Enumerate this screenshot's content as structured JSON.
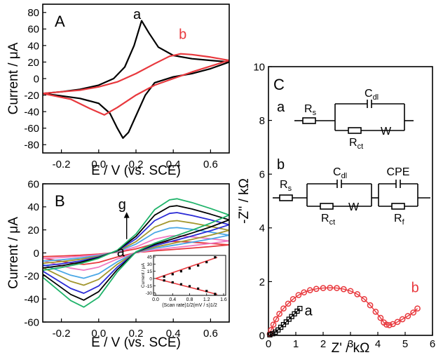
{
  "colors": {
    "a": "#000000",
    "b": "#e8383d",
    "frame": "#000000",
    "fit": "#e8383d"
  },
  "chart_data": [
    {
      "id": "A",
      "type": "line",
      "panel_label": "A",
      "xlabel": "E / V (vs. SCE)",
      "ylabel": "Current / μA",
      "xlim": [
        -0.3,
        0.7
      ],
      "ylim": [
        -90,
        90
      ],
      "xticks": [
        -0.2,
        0.0,
        0.2,
        0.4,
        0.6
      ],
      "xtick_labels": [
        "-0.2",
        "0.0",
        "0.2",
        "0.4",
        "0.6"
      ],
      "yticks": [
        -80,
        -60,
        -40,
        -20,
        0,
        20,
        40,
        60,
        80
      ],
      "ytick_labels": [
        "-80",
        "-60",
        "-40",
        "-20",
        "0",
        "20",
        "40",
        "60",
        "80"
      ],
      "series": [
        {
          "name": "a",
          "color": "#000000",
          "x": [
            -0.3,
            -0.2,
            -0.1,
            0.0,
            0.08,
            0.14,
            0.19,
            0.23,
            0.27,
            0.32,
            0.4,
            0.5,
            0.6,
            0.7,
            0.6,
            0.5,
            0.4,
            0.3,
            0.25,
            0.2,
            0.16,
            0.13,
            0.1,
            0.06,
            0.0,
            -0.1,
            -0.2,
            -0.3
          ],
          "y": [
            -18,
            -16,
            -13,
            -8,
            0,
            14,
            40,
            70,
            55,
            38,
            28,
            24,
            22,
            20,
            12,
            6,
            2,
            -5,
            -20,
            -45,
            -65,
            -72,
            -60,
            -42,
            -30,
            -24,
            -21,
            -18
          ]
        },
        {
          "name": "b",
          "color": "#e8383d",
          "x": [
            -0.3,
            -0.2,
            -0.1,
            0.0,
            0.1,
            0.2,
            0.3,
            0.38,
            0.44,
            0.5,
            0.6,
            0.7,
            0.6,
            0.5,
            0.4,
            0.3,
            0.2,
            0.1,
            0.03,
            -0.05,
            -0.15,
            -0.3
          ],
          "y": [
            -18,
            -16,
            -14,
            -10,
            -4,
            6,
            18,
            27,
            30,
            29,
            26,
            22,
            15,
            8,
            0,
            -8,
            -20,
            -35,
            -44,
            -36,
            -25,
            -18
          ]
        }
      ],
      "annotations": [
        {
          "text": "a",
          "x": 0.185,
          "y": 72
        },
        {
          "text": "b",
          "x": 0.43,
          "y": 48
        }
      ]
    },
    {
      "id": "B",
      "type": "line",
      "panel_label": "B",
      "xlabel": "E / V (vs. SCE)",
      "ylabel": "Current / μA",
      "xlim": [
        -0.3,
        0.7
      ],
      "ylim": [
        -60,
        60
      ],
      "xticks": [
        -0.2,
        0.0,
        0.2,
        0.4,
        0.6
      ],
      "xtick_labels": [
        "-0.2",
        "0.0",
        "0.2",
        "0.4",
        "0.6"
      ],
      "yticks": [
        -60,
        -40,
        -20,
        0,
        20,
        40,
        60
      ],
      "ytick_labels": [
        "-60",
        "-40",
        "-20",
        "0",
        "20",
        "40",
        "60"
      ],
      "series": [
        {
          "name": "a",
          "color": "#e8383d",
          "peak": 10
        },
        {
          "name": "",
          "color": "#f07ac2",
          "peak": 15
        },
        {
          "name": "",
          "color": "#4aa7e6",
          "peak": 22
        },
        {
          "name": "",
          "color": "#a2962e",
          "peak": 28
        },
        {
          "name": "",
          "color": "#2b2bd6",
          "peak": 35
        },
        {
          "name": "",
          "color": "#000000",
          "peak": 41
        },
        {
          "name": "g",
          "color": "#1fb36a",
          "peak": 47
        }
      ],
      "annotations": [
        {
          "text": "g",
          "x": 0.15,
          "y": 38
        },
        {
          "text": "a",
          "x": 0.14,
          "y": 2
        }
      ],
      "inset": {
        "type": "scatter",
        "xlabel": "(Scan rate)1/2(mV / s)1/2",
        "ylabel": "Current / μA",
        "xlim": [
          -0.05,
          1.65
        ],
        "ylim": [
          -35,
          48
        ],
        "xticks": [
          0.0,
          0.4,
          0.8,
          1.2,
          1.6
        ],
        "xtick_labels": [
          "0.0",
          "0.4",
          "0.8",
          "1.2",
          "1.6"
        ],
        "yticks": [
          -30,
          -15,
          0,
          15,
          30,
          45
        ],
        "ytick_labels": [
          "-30",
          "-15",
          "0",
          "15",
          "30",
          "45"
        ],
        "anodic": {
          "x": [
            0.2,
            0.4,
            0.6,
            0.8,
            1.0,
            1.2,
            1.4
          ],
          "y": [
            4,
            9,
            15,
            21,
            27,
            34,
            44
          ]
        },
        "cathodic": {
          "x": [
            0.2,
            0.4,
            0.6,
            0.8,
            1.0,
            1.2,
            1.4
          ],
          "y": [
            -4,
            -8,
            -12,
            -16,
            -21,
            -26,
            -32
          ]
        },
        "fit_anodic": [
          [
            0.0,
            0
          ],
          [
            1.45,
            44
          ]
        ],
        "fit_cathodic": [
          [
            0.0,
            0
          ],
          [
            1.45,
            -33
          ]
        ]
      }
    },
    {
      "id": "C",
      "type": "scatter",
      "panel_label": "C",
      "xlabel": "Z' / kΩ",
      "ylabel": "-Z'' / kΩ",
      "xlim": [
        0,
        6
      ],
      "ylim": [
        0,
        10
      ],
      "xticks": [
        0,
        1,
        2,
        3,
        4,
        5,
        6
      ],
      "xtick_labels": [
        "0",
        "1",
        "2",
        "3",
        "4",
        "5",
        "6"
      ],
      "yticks": [
        0,
        2,
        4,
        6,
        8,
        10
      ],
      "ytick_labels": [
        "0",
        "2",
        "4",
        "6",
        "8",
        "10"
      ],
      "series": [
        {
          "name": "a",
          "color": "#000000",
          "marker": "square",
          "x": [
            0.05,
            0.15,
            0.25,
            0.35,
            0.45,
            0.55,
            0.65,
            0.75,
            0.85,
            0.95,
            1.05,
            1.15
          ],
          "y": [
            0.02,
            0.06,
            0.12,
            0.2,
            0.3,
            0.4,
            0.5,
            0.6,
            0.7,
            0.8,
            0.9,
            1.0
          ]
        },
        {
          "name": "b",
          "color": "#e8383d",
          "marker": "circle",
          "x": [
            0.05,
            0.1,
            0.18,
            0.28,
            0.4,
            0.55,
            0.72,
            0.9,
            1.1,
            1.3,
            1.52,
            1.75,
            2.0,
            2.25,
            2.5,
            2.75,
            3.0,
            3.25,
            3.5,
            3.72,
            3.92,
            4.1,
            4.22,
            4.32,
            4.42,
            4.55,
            4.72,
            4.9,
            5.1,
            5.3,
            5.45
          ],
          "y": [
            0.05,
            0.2,
            0.4,
            0.6,
            0.8,
            1.0,
            1.18,
            1.35,
            1.5,
            1.6,
            1.68,
            1.73,
            1.76,
            1.77,
            1.76,
            1.72,
            1.65,
            1.53,
            1.35,
            1.12,
            0.88,
            0.65,
            0.48,
            0.4,
            0.38,
            0.42,
            0.5,
            0.6,
            0.72,
            0.85,
            1.0
          ]
        }
      ],
      "annotations": [
        {
          "text": "a",
          "x": 1.32,
          "y": 0.75
        },
        {
          "text": "b",
          "x": 5.22,
          "y": 1.6
        }
      ],
      "circuits": {
        "a": {
          "label": "a",
          "rs": "R",
          "rs_sub": "s",
          "cdl": "C",
          "cdl_sub": "dl",
          "rct": "R",
          "rct_sub": "ct",
          "w": "W"
        },
        "b": {
          "label": "b",
          "rs": "R",
          "rs_sub": "s",
          "cdl": "C",
          "cdl_sub": "dl",
          "rct": "R",
          "rct_sub": "ct",
          "w": "W",
          "cpe": "CPE",
          "rf": "R",
          "rf_sub": "f"
        }
      }
    }
  ]
}
